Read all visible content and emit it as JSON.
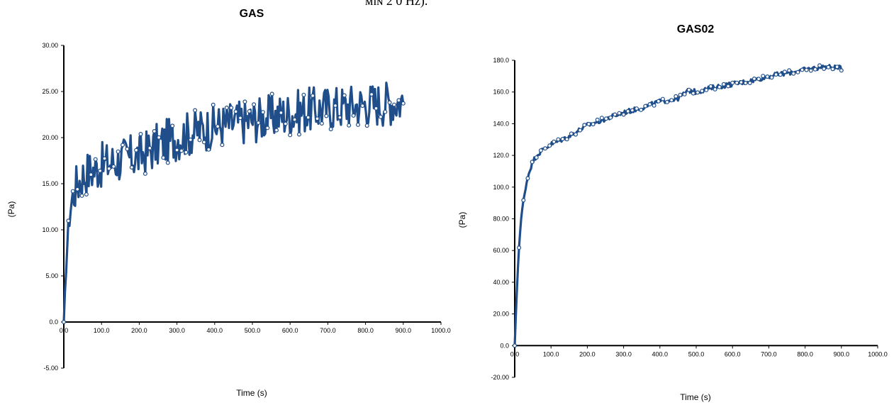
{
  "caption_fragment": "ᴍɪɴ 2 0 Hz).",
  "colors": {
    "series": "#1f4e8a",
    "axis": "#000000"
  },
  "chart_data": [
    {
      "type": "line",
      "title": "GAS",
      "xlabel": "Time (s)",
      "ylabel": "(Pa)",
      "xlim": [
        0,
        1000
      ],
      "ylim": [
        -5,
        30
      ],
      "x_ticks": [
        0,
        100,
        200,
        300,
        400,
        500,
        600,
        700,
        800,
        900,
        1000
      ],
      "x_tick_labels": [
        "0.0",
        "100.0",
        "200.0",
        "300.0",
        "400.0",
        "500.0",
        "600.0",
        "700.0",
        "800.0",
        "900.0",
        "1000.0"
      ],
      "y_ticks": [
        -5,
        0,
        5,
        10,
        15,
        20,
        25,
        30
      ],
      "y_tick_labels": [
        "-5.00",
        "0.0",
        "5.00",
        "10.00",
        "15.00",
        "20.00",
        "25.00",
        "30.00"
      ],
      "grid": false,
      "legend": "none",
      "series": [
        {
          "x": [
            0,
            5,
            10,
            15,
            20,
            30,
            40,
            50,
            60,
            80,
            100,
            120,
            150,
            180,
            200,
            250,
            300,
            350,
            400,
            450,
            500,
            550,
            600,
            650,
            700,
            750,
            800,
            850,
            900
          ],
          "y": [
            0,
            5,
            9,
            11.5,
            13,
            14.5,
            15.2,
            15.8,
            16.2,
            16.5,
            17,
            17.2,
            17.6,
            17.9,
            18,
            19.2,
            20,
            20.7,
            21.2,
            21.6,
            21.9,
            22.3,
            22.6,
            23,
            23.2,
            23.4,
            23.6,
            23.8,
            24
          ],
          "noise_amplitude": 2.5
        }
      ]
    },
    {
      "type": "line",
      "title": "GAS02",
      "xlabel": "Time (s)",
      "ylabel": "(Pa)",
      "xlim": [
        0,
        1000
      ],
      "ylim": [
        -20,
        180
      ],
      "x_ticks": [
        0,
        100,
        200,
        300,
        400,
        500,
        600,
        700,
        800,
        900,
        1000
      ],
      "x_tick_labels": [
        "0.0",
        "100.0",
        "200.0",
        "300.0",
        "400.0",
        "500.0",
        "600.0",
        "700.0",
        "800.0",
        "900.0",
        "1000.0"
      ],
      "y_ticks": [
        -20,
        0,
        20,
        40,
        60,
        80,
        100,
        120,
        140,
        160,
        180
      ],
      "y_tick_labels": [
        "-20.00",
        "0.0",
        "20.00",
        "40.00",
        "60.00",
        "80.00",
        "100.0",
        "120.0",
        "140.0",
        "160.0",
        "180.0"
      ],
      "grid": false,
      "legend": "none",
      "series": [
        {
          "x": [
            0,
            5,
            10,
            15,
            20,
            30,
            40,
            50,
            60,
            80,
            100,
            150,
            200,
            250,
            300,
            350,
            400,
            450,
            480,
            500,
            550,
            600,
            650,
            700,
            750,
            800,
            850,
            900
          ],
          "y": [
            0,
            30,
            55,
            72,
            85,
            100,
            110,
            116,
            120,
            124,
            127,
            132,
            139,
            143,
            147,
            150,
            154,
            156,
            161,
            160,
            163,
            165,
            167,
            170,
            172,
            174,
            176,
            175
          ],
          "noise_amplitude": 1.5
        }
      ]
    }
  ]
}
